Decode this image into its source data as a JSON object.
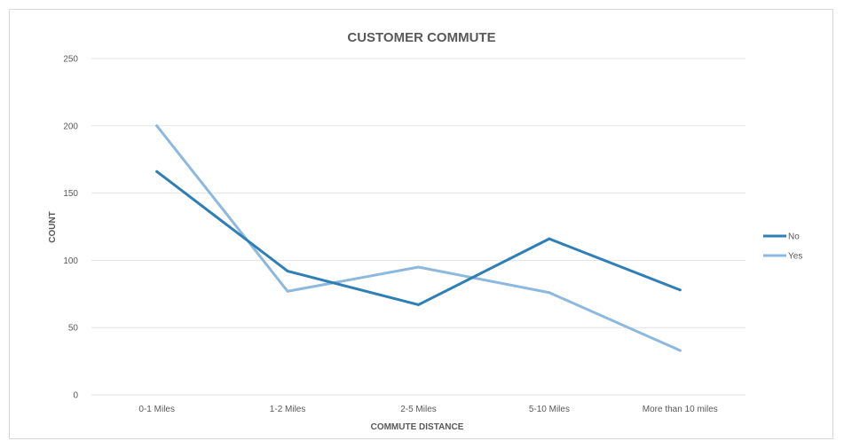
{
  "chart_data": {
    "type": "line",
    "title": "CUSTOMER COMMUTE",
    "xlabel": "COMMUTE DISTANCE",
    "ylabel": "COUNT",
    "categories": [
      "0-1 Miles",
      "1-2 Miles",
      "2-5 Miles",
      "5-10 Miles",
      "More than 10 miles"
    ],
    "y_ticks": [
      "0",
      "50",
      "100",
      "150",
      "200",
      "250"
    ],
    "ylim": [
      0,
      250
    ],
    "grid": true,
    "legend_position": "right",
    "series": [
      {
        "name": "No",
        "color": "#2e7fb6",
        "values": [
          166,
          92,
          67,
          116,
          78
        ]
      },
      {
        "name": "Yes",
        "color": "#8db9de",
        "values": [
          200,
          77,
          95,
          76,
          33
        ]
      }
    ]
  }
}
